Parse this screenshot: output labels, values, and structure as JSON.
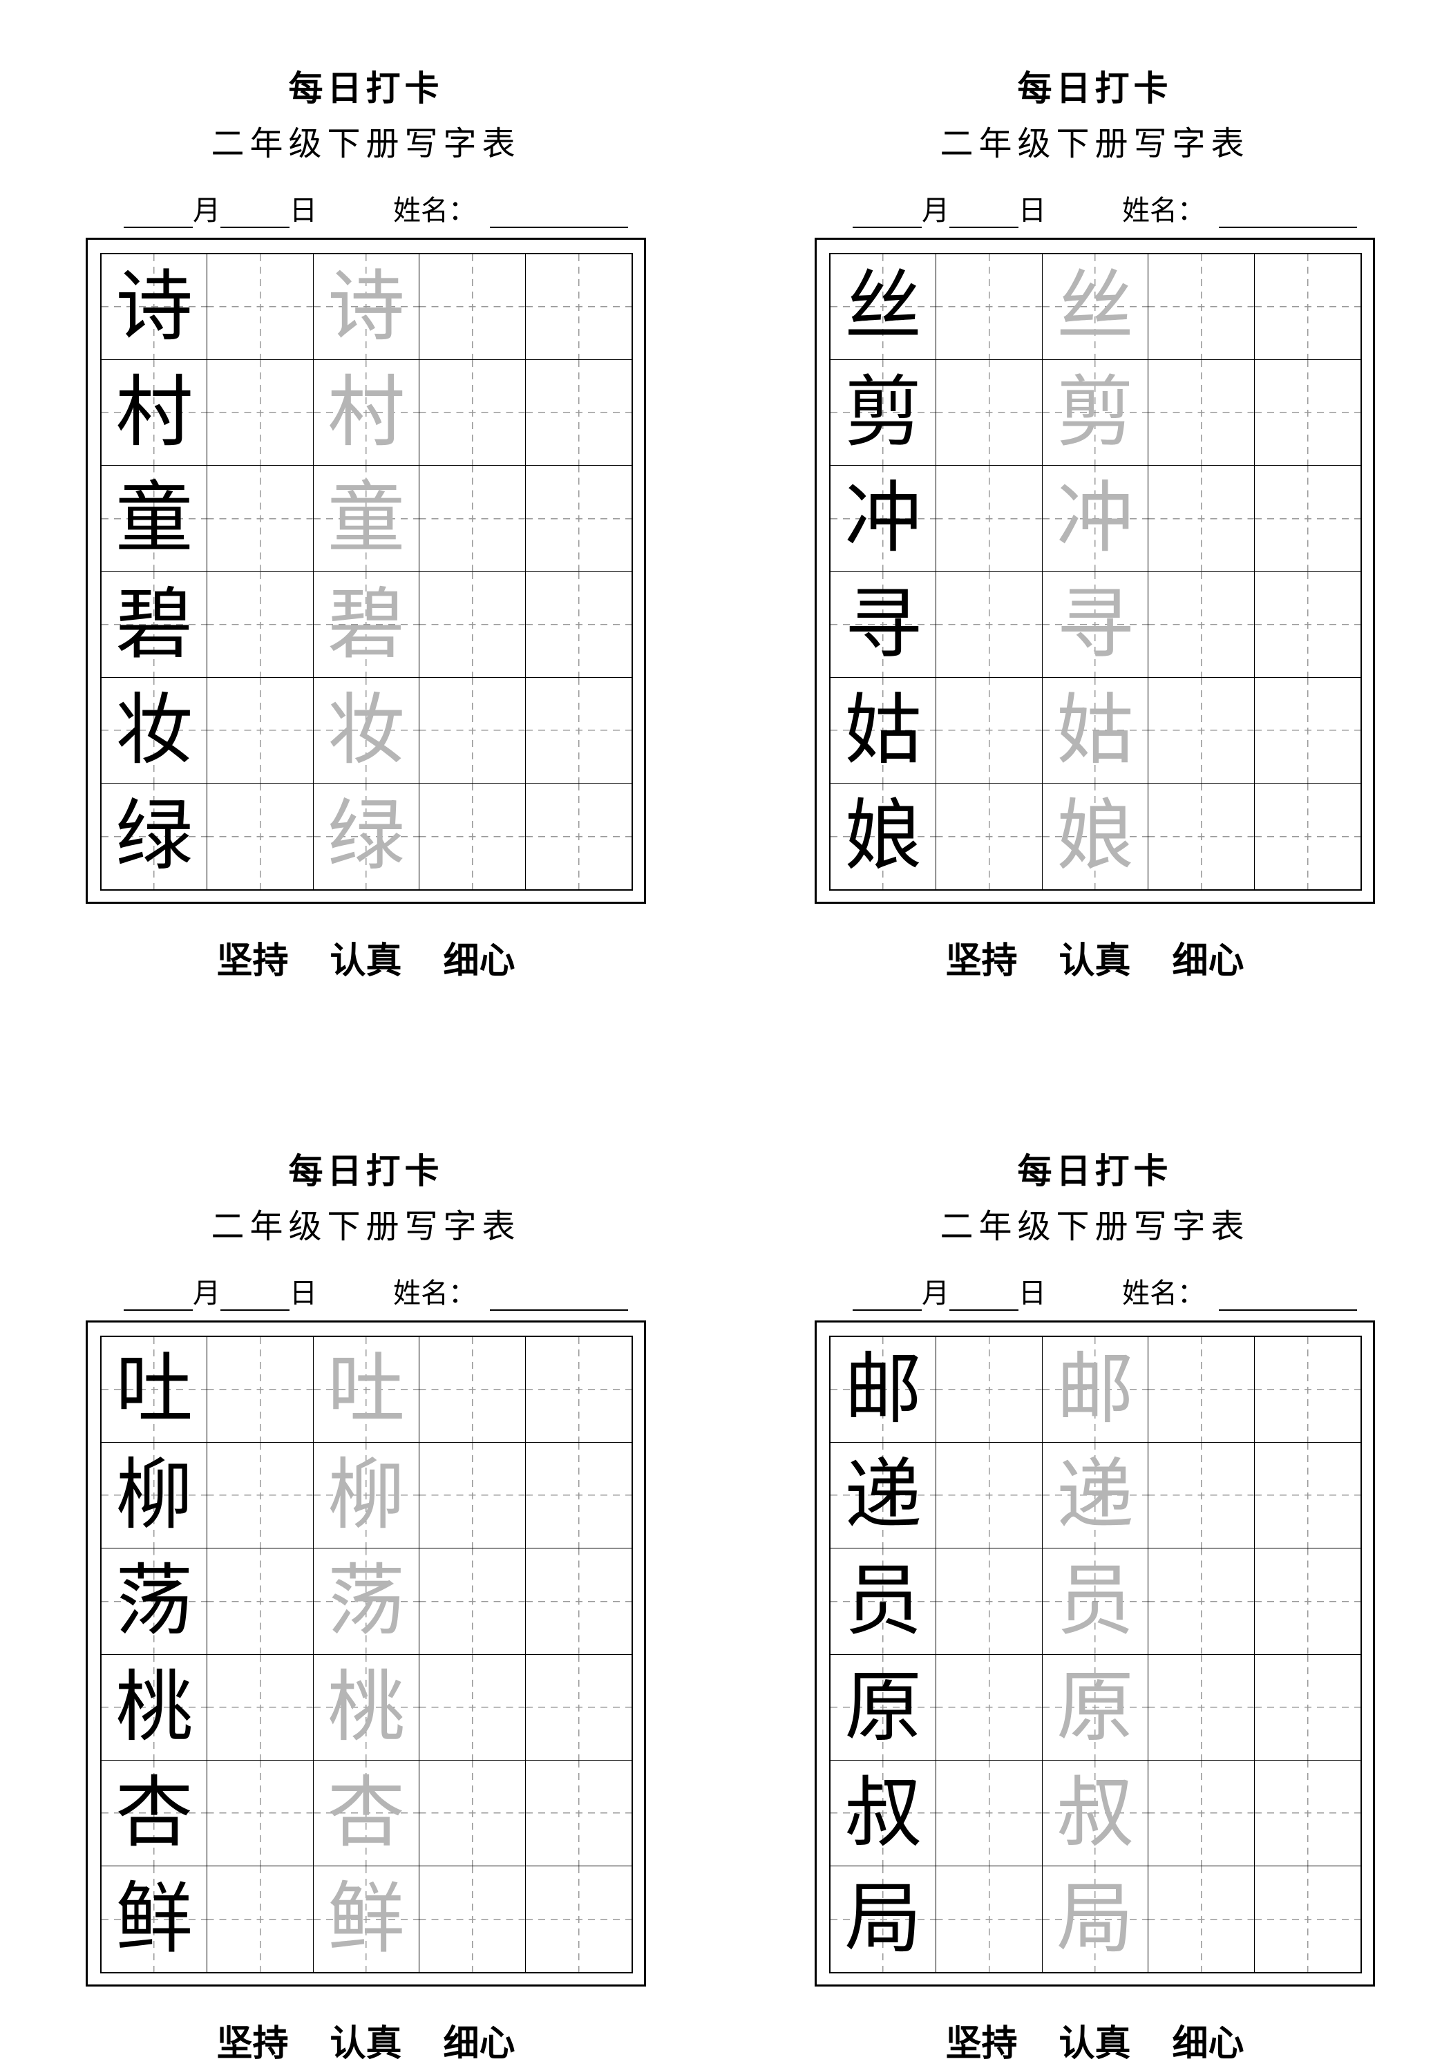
{
  "worksheets": [
    {
      "title": "每日打卡",
      "subtitle": "二年级下册写字表",
      "month_label": "月",
      "day_label": "日",
      "name_label": "姓名：",
      "characters": [
        "诗",
        "村",
        "童",
        "碧",
        "妆",
        "绿"
      ],
      "footer": [
        "坚持",
        "认真",
        "细心"
      ]
    },
    {
      "title": "每日打卡",
      "subtitle": "二年级下册写字表",
      "month_label": "月",
      "day_label": "日",
      "name_label": "姓名：",
      "characters": [
        "丝",
        "剪",
        "冲",
        "寻",
        "姑",
        "娘"
      ],
      "footer": [
        "坚持",
        "认真",
        "细心"
      ]
    },
    {
      "title": "每日打卡",
      "subtitle": "二年级下册写字表",
      "month_label": "月",
      "day_label": "日",
      "name_label": "姓名：",
      "characters": [
        "吐",
        "柳",
        "荡",
        "桃",
        "杏",
        "鲜"
      ],
      "footer": [
        "坚持",
        "认真",
        "细心"
      ]
    },
    {
      "title": "每日打卡",
      "subtitle": "二年级下册写字表",
      "month_label": "月",
      "day_label": "日",
      "name_label": "姓名：",
      "characters": [
        "邮",
        "递",
        "员",
        "原",
        "叔",
        "局"
      ],
      "footer": [
        "坚持",
        "认真",
        "细心"
      ]
    }
  ],
  "colors": {
    "model_char": "#000000",
    "trace_char": "#b5b5b5",
    "guide_line": "#999999"
  }
}
